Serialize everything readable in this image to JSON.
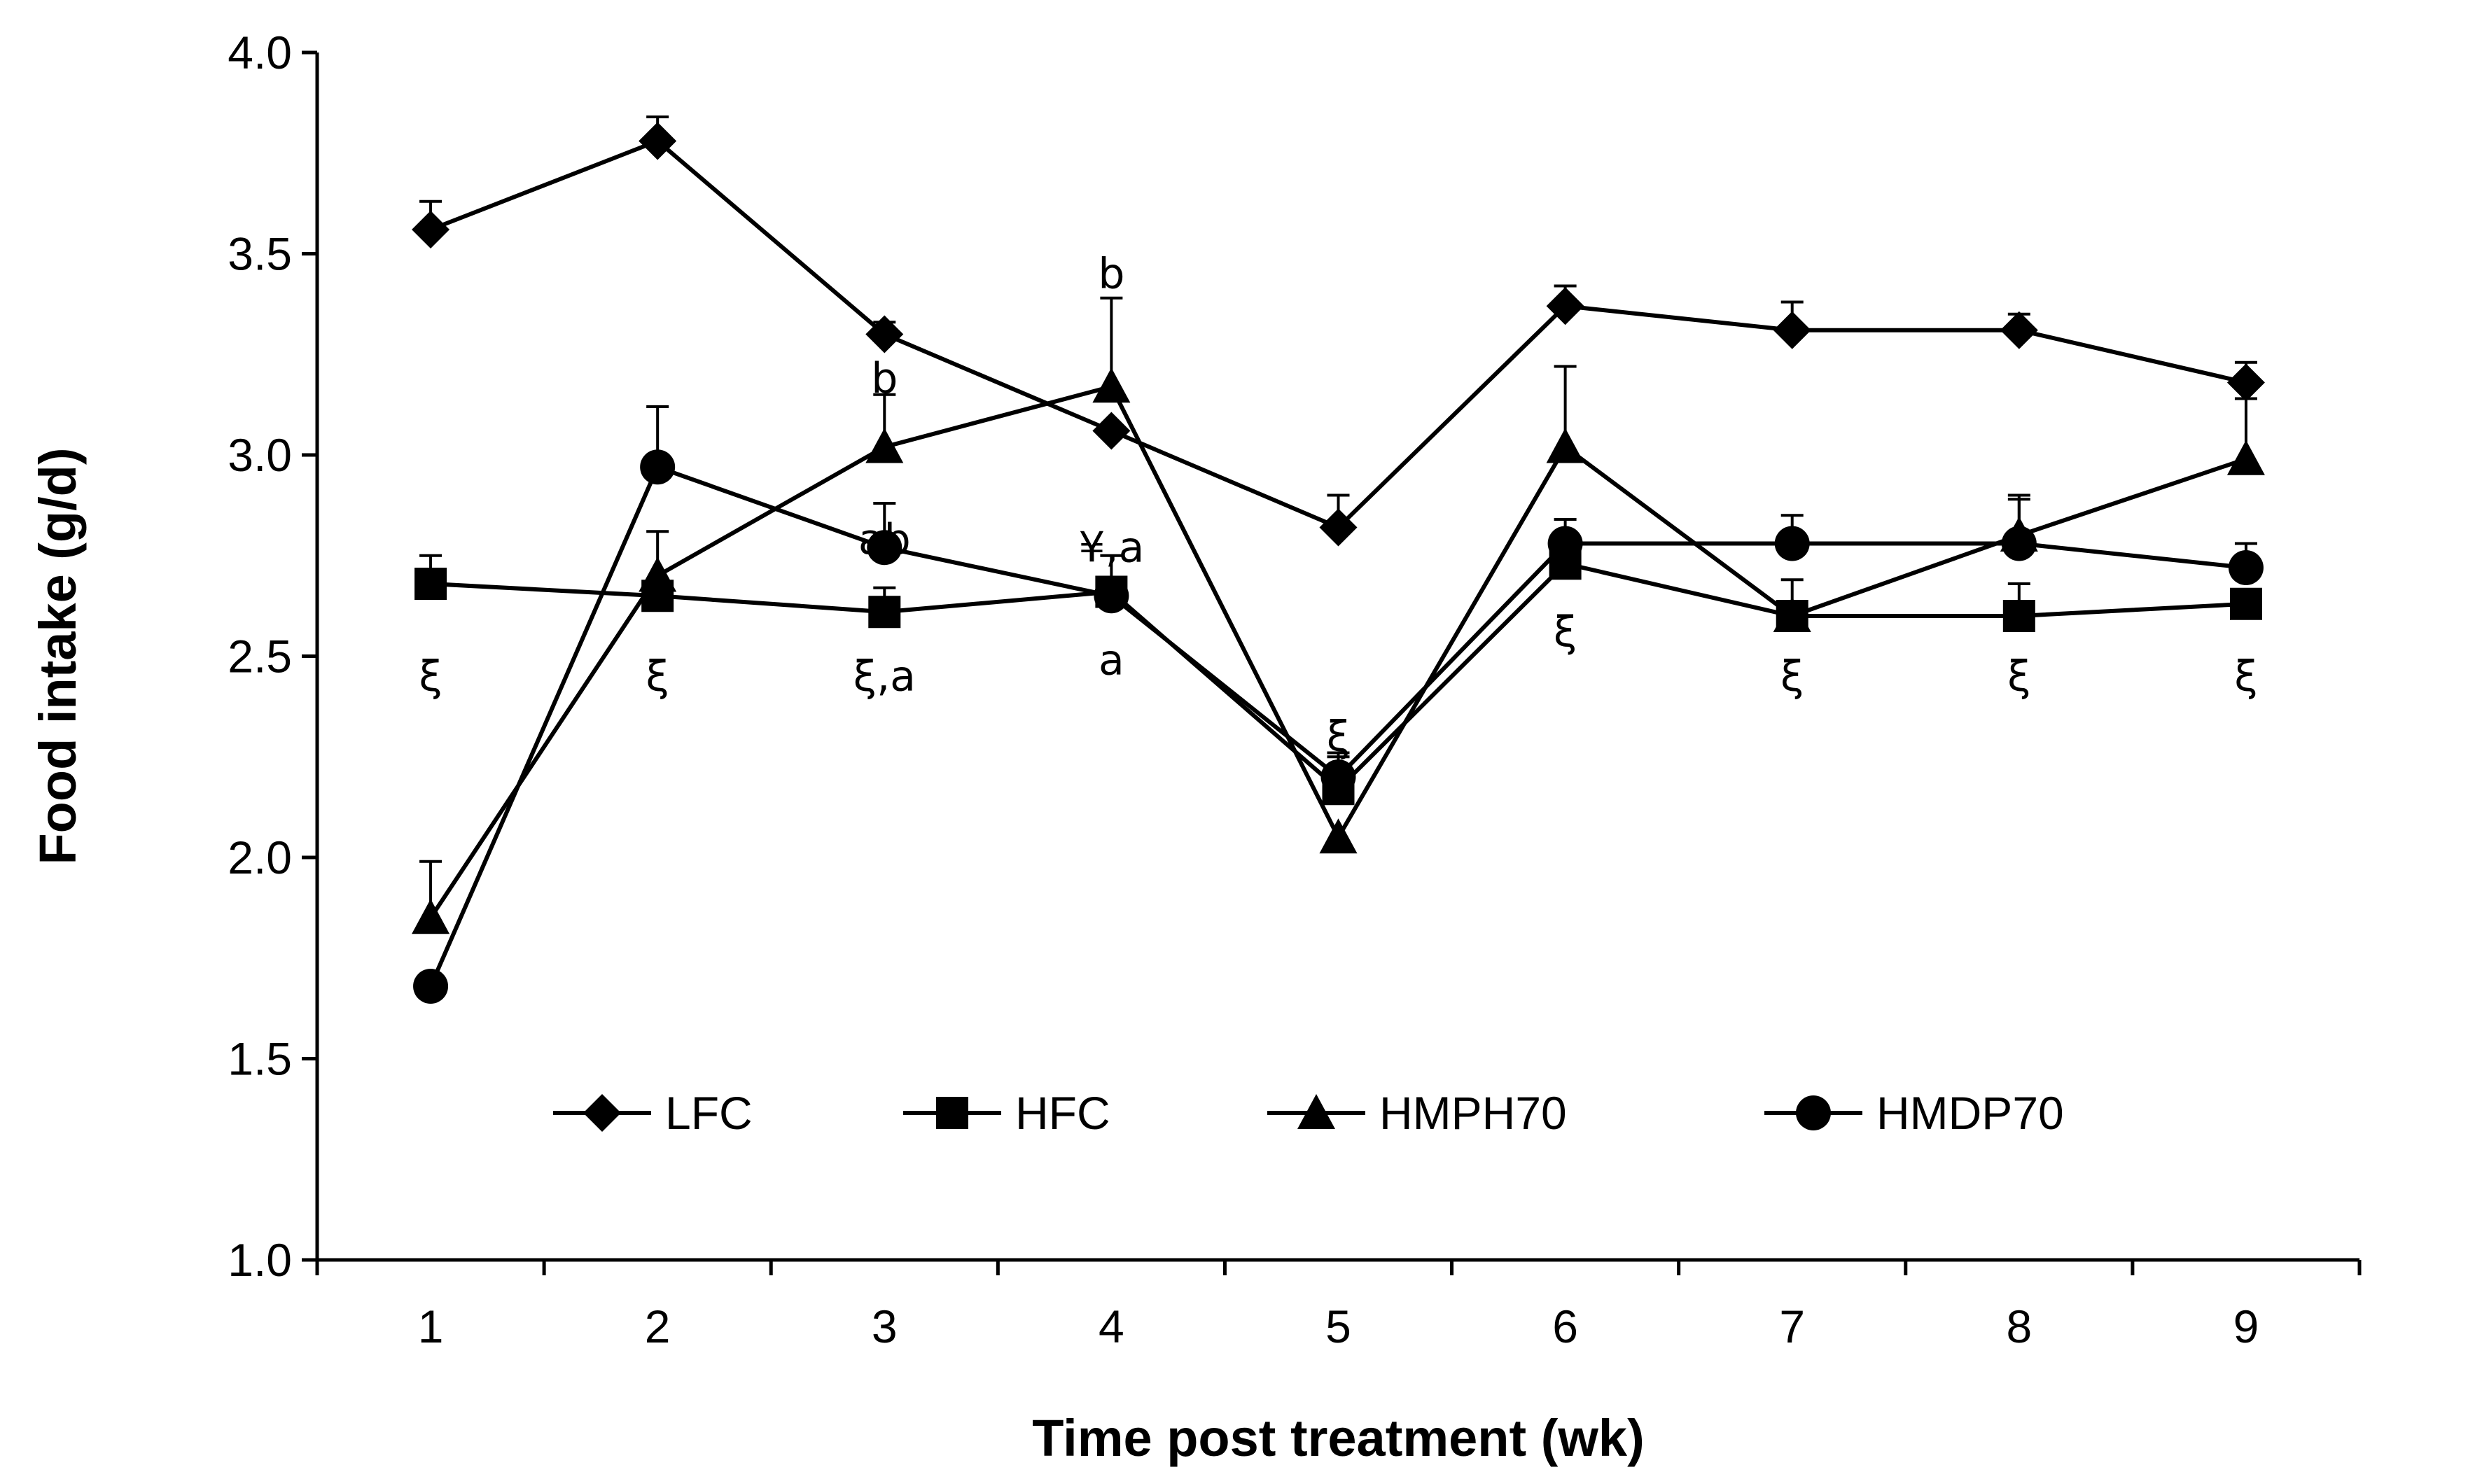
{
  "chart_data": {
    "type": "line",
    "title": "",
    "xlabel": "Time post treatment (wk)",
    "ylabel": "Food intake (g/d)",
    "categories": [
      "1",
      "2",
      "3",
      "4",
      "5",
      "6",
      "7",
      "8",
      "9"
    ],
    "ylim": [
      1.0,
      4.0
    ],
    "yticks": [
      "1.0",
      "1.5",
      "2.0",
      "2.5",
      "3.0",
      "3.5",
      "4.0"
    ],
    "grid": false,
    "legend_position": "bottom-inside",
    "series": [
      {
        "name": "LFC",
        "marker": "diamond",
        "values": [
          3.56,
          3.78,
          3.3,
          3.06,
          2.82,
          3.37,
          3.31,
          3.31,
          3.18
        ],
        "errors": [
          0.07,
          0.06,
          0.03,
          0.0,
          0.08,
          0.05,
          0.07,
          0.04,
          0.05
        ]
      },
      {
        "name": "HFC",
        "marker": "square",
        "values": [
          2.68,
          2.65,
          2.61,
          2.66,
          2.17,
          2.73,
          2.6,
          2.6,
          2.63
        ],
        "errors": [
          0.07,
          0.0,
          0.06,
          0.09,
          0.09,
          0.0,
          0.09,
          0.08,
          0.0
        ]
      },
      {
        "name": "HMPH70",
        "marker": "triangle",
        "values": [
          1.85,
          2.7,
          3.02,
          3.17,
          2.05,
          3.02,
          2.6,
          2.8,
          2.99
        ],
        "errors": [
          0.14,
          0.11,
          0.13,
          0.22,
          0.0,
          0.2,
          0.0,
          0.09,
          0.15
        ]
      },
      {
        "name": "HMDP70",
        "marker": "circle",
        "values": [
          1.68,
          2.97,
          2.77,
          2.65,
          2.2,
          2.78,
          2.78,
          2.78,
          2.72
        ],
        "errors": [
          0.0,
          0.15,
          0.11,
          0.0,
          0.05,
          0.06,
          0.07,
          0.12,
          0.06
        ]
      }
    ],
    "annotations": [
      {
        "text": "ξ",
        "x": 1,
        "y": 2.45
      },
      {
        "text": "ξ",
        "x": 2,
        "y": 2.45
      },
      {
        "text": "ξ,a",
        "x": 3,
        "y": 2.45
      },
      {
        "text": "ab",
        "x": 3,
        "y": 2.79
      },
      {
        "text": "b",
        "x": 3,
        "y": 3.19
      },
      {
        "text": "a",
        "x": 4,
        "y": 2.49
      },
      {
        "text": "¥,a",
        "x": 4,
        "y": 2.77
      },
      {
        "text": "b",
        "x": 4,
        "y": 3.45
      },
      {
        "text": "ξ",
        "x": 5,
        "y": 2.3
      },
      {
        "text": "ξ",
        "x": 6,
        "y": 2.56
      },
      {
        "text": "ξ",
        "x": 7,
        "y": 2.45
      },
      {
        "text": "ξ",
        "x": 8,
        "y": 2.45
      },
      {
        "text": "ξ",
        "x": 9,
        "y": 2.45
      }
    ]
  }
}
